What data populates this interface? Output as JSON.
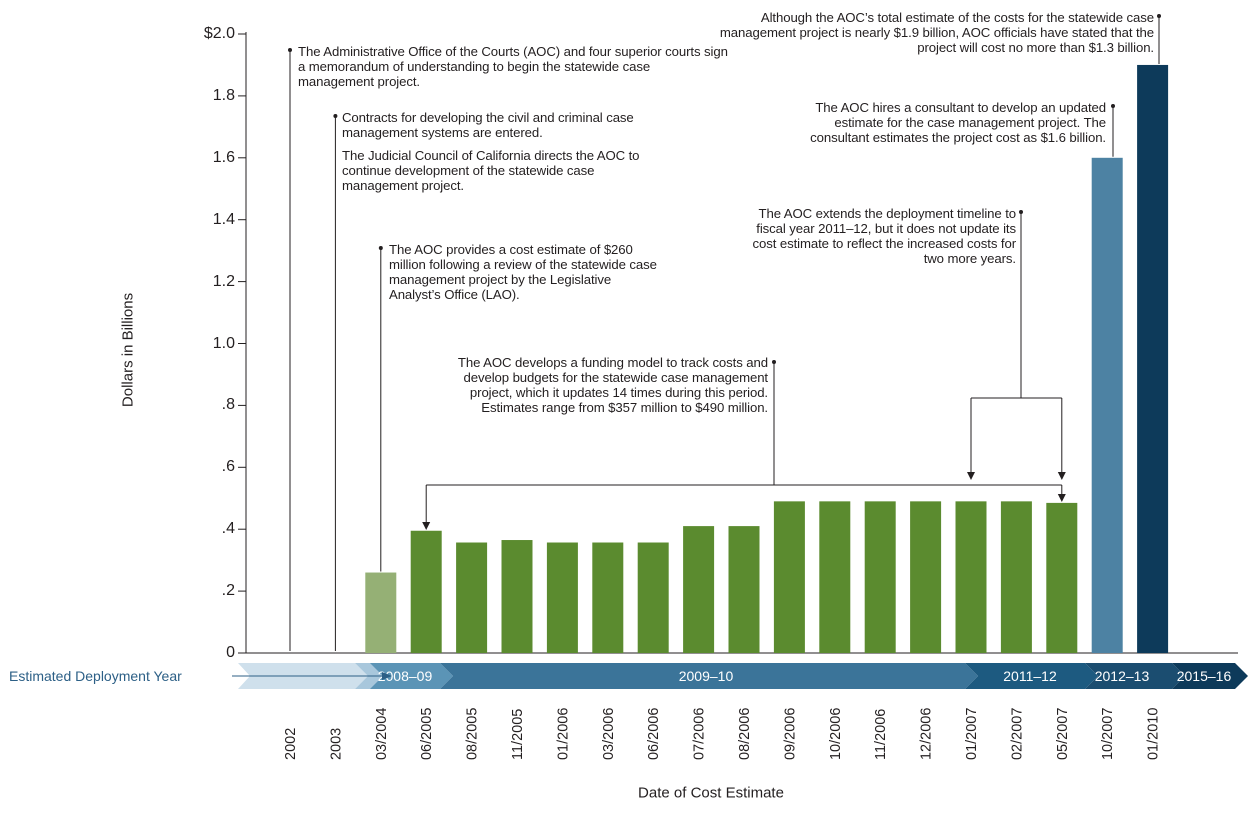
{
  "chart_data": {
    "type": "bar",
    "ylabel": "Dollars in Billions",
    "xlabel": "Date of Cost Estimate",
    "ylim": [
      0,
      2.0
    ],
    "yticks": [
      "0",
      ".2",
      ".4",
      ".6",
      ".8",
      "1.0",
      "1.2",
      "1.4",
      "1.6",
      "1.8",
      "$2.0"
    ],
    "categories": [
      "2002",
      "2003",
      "03/2004",
      "06/2005",
      "08/2005",
      "11/2005",
      "01/2006",
      "03/2006",
      "06/2006",
      "07/2006",
      "08/2006",
      "09/2006",
      "10/2006",
      "11/2006",
      "12/2006",
      "01/2007",
      "02/2007",
      "05/2007",
      "10/2007",
      "01/2010"
    ],
    "values": [
      0,
      0,
      0.26,
      0.395,
      0.357,
      0.365,
      0.357,
      0.357,
      0.357,
      0.41,
      0.41,
      0.49,
      0.49,
      0.49,
      0.49,
      0.49,
      0.49,
      0.485,
      1.6,
      1.9
    ],
    "bar_colors": [
      "#ffffff",
      "#ffffff",
      "#95b075",
      "#5b8b2f",
      "#5b8b2f",
      "#5b8b2f",
      "#5b8b2f",
      "#5b8b2f",
      "#5b8b2f",
      "#5b8b2f",
      "#5b8b2f",
      "#5b8b2f",
      "#5b8b2f",
      "#5b8b2f",
      "#5b8b2f",
      "#5b8b2f",
      "#5b8b2f",
      "#5b8b2f",
      "#4d82a3",
      "#0d3a5a"
    ],
    "deployment_band": {
      "label": "Estimated Deployment Year",
      "segments": [
        "2008–09",
        "2009–10",
        "2011–12",
        "2012–13",
        "2015–16"
      ]
    },
    "annotations": [
      "The Administrative Office of the Courts (AOC) and four superior courts sign a memorandum of understanding to begin the statewide case management project.",
      "Contracts for developing the civil and criminal case management systems are entered.",
      "The Judicial Council of California directs the AOC to continue development of the statewide case management project.",
      "The AOC provides a cost estimate of $260 million following a review of the statewide case management project by the Legislative Analyst’s Office (LAO).",
      "The AOC develops a funding model to track costs and develop budgets for the statewide case management project, which it updates 14 times during this period. Estimates range from $357 million to $490 million.",
      "The AOC extends the deployment timeline to fiscal year 2011–12, but it does not update its cost estimate to reflect the increased costs for two more years.",
      "The AOC hires a consultant to develop an updated estimate for the case management project. The consultant estimates the project cost as $1.6 billion.",
      "Although the AOC’s total estimate of the costs for the statewide case management project is nearly $1.9 billion, AOC officials have stated that the project will cost no more than $1.3 billion."
    ]
  }
}
